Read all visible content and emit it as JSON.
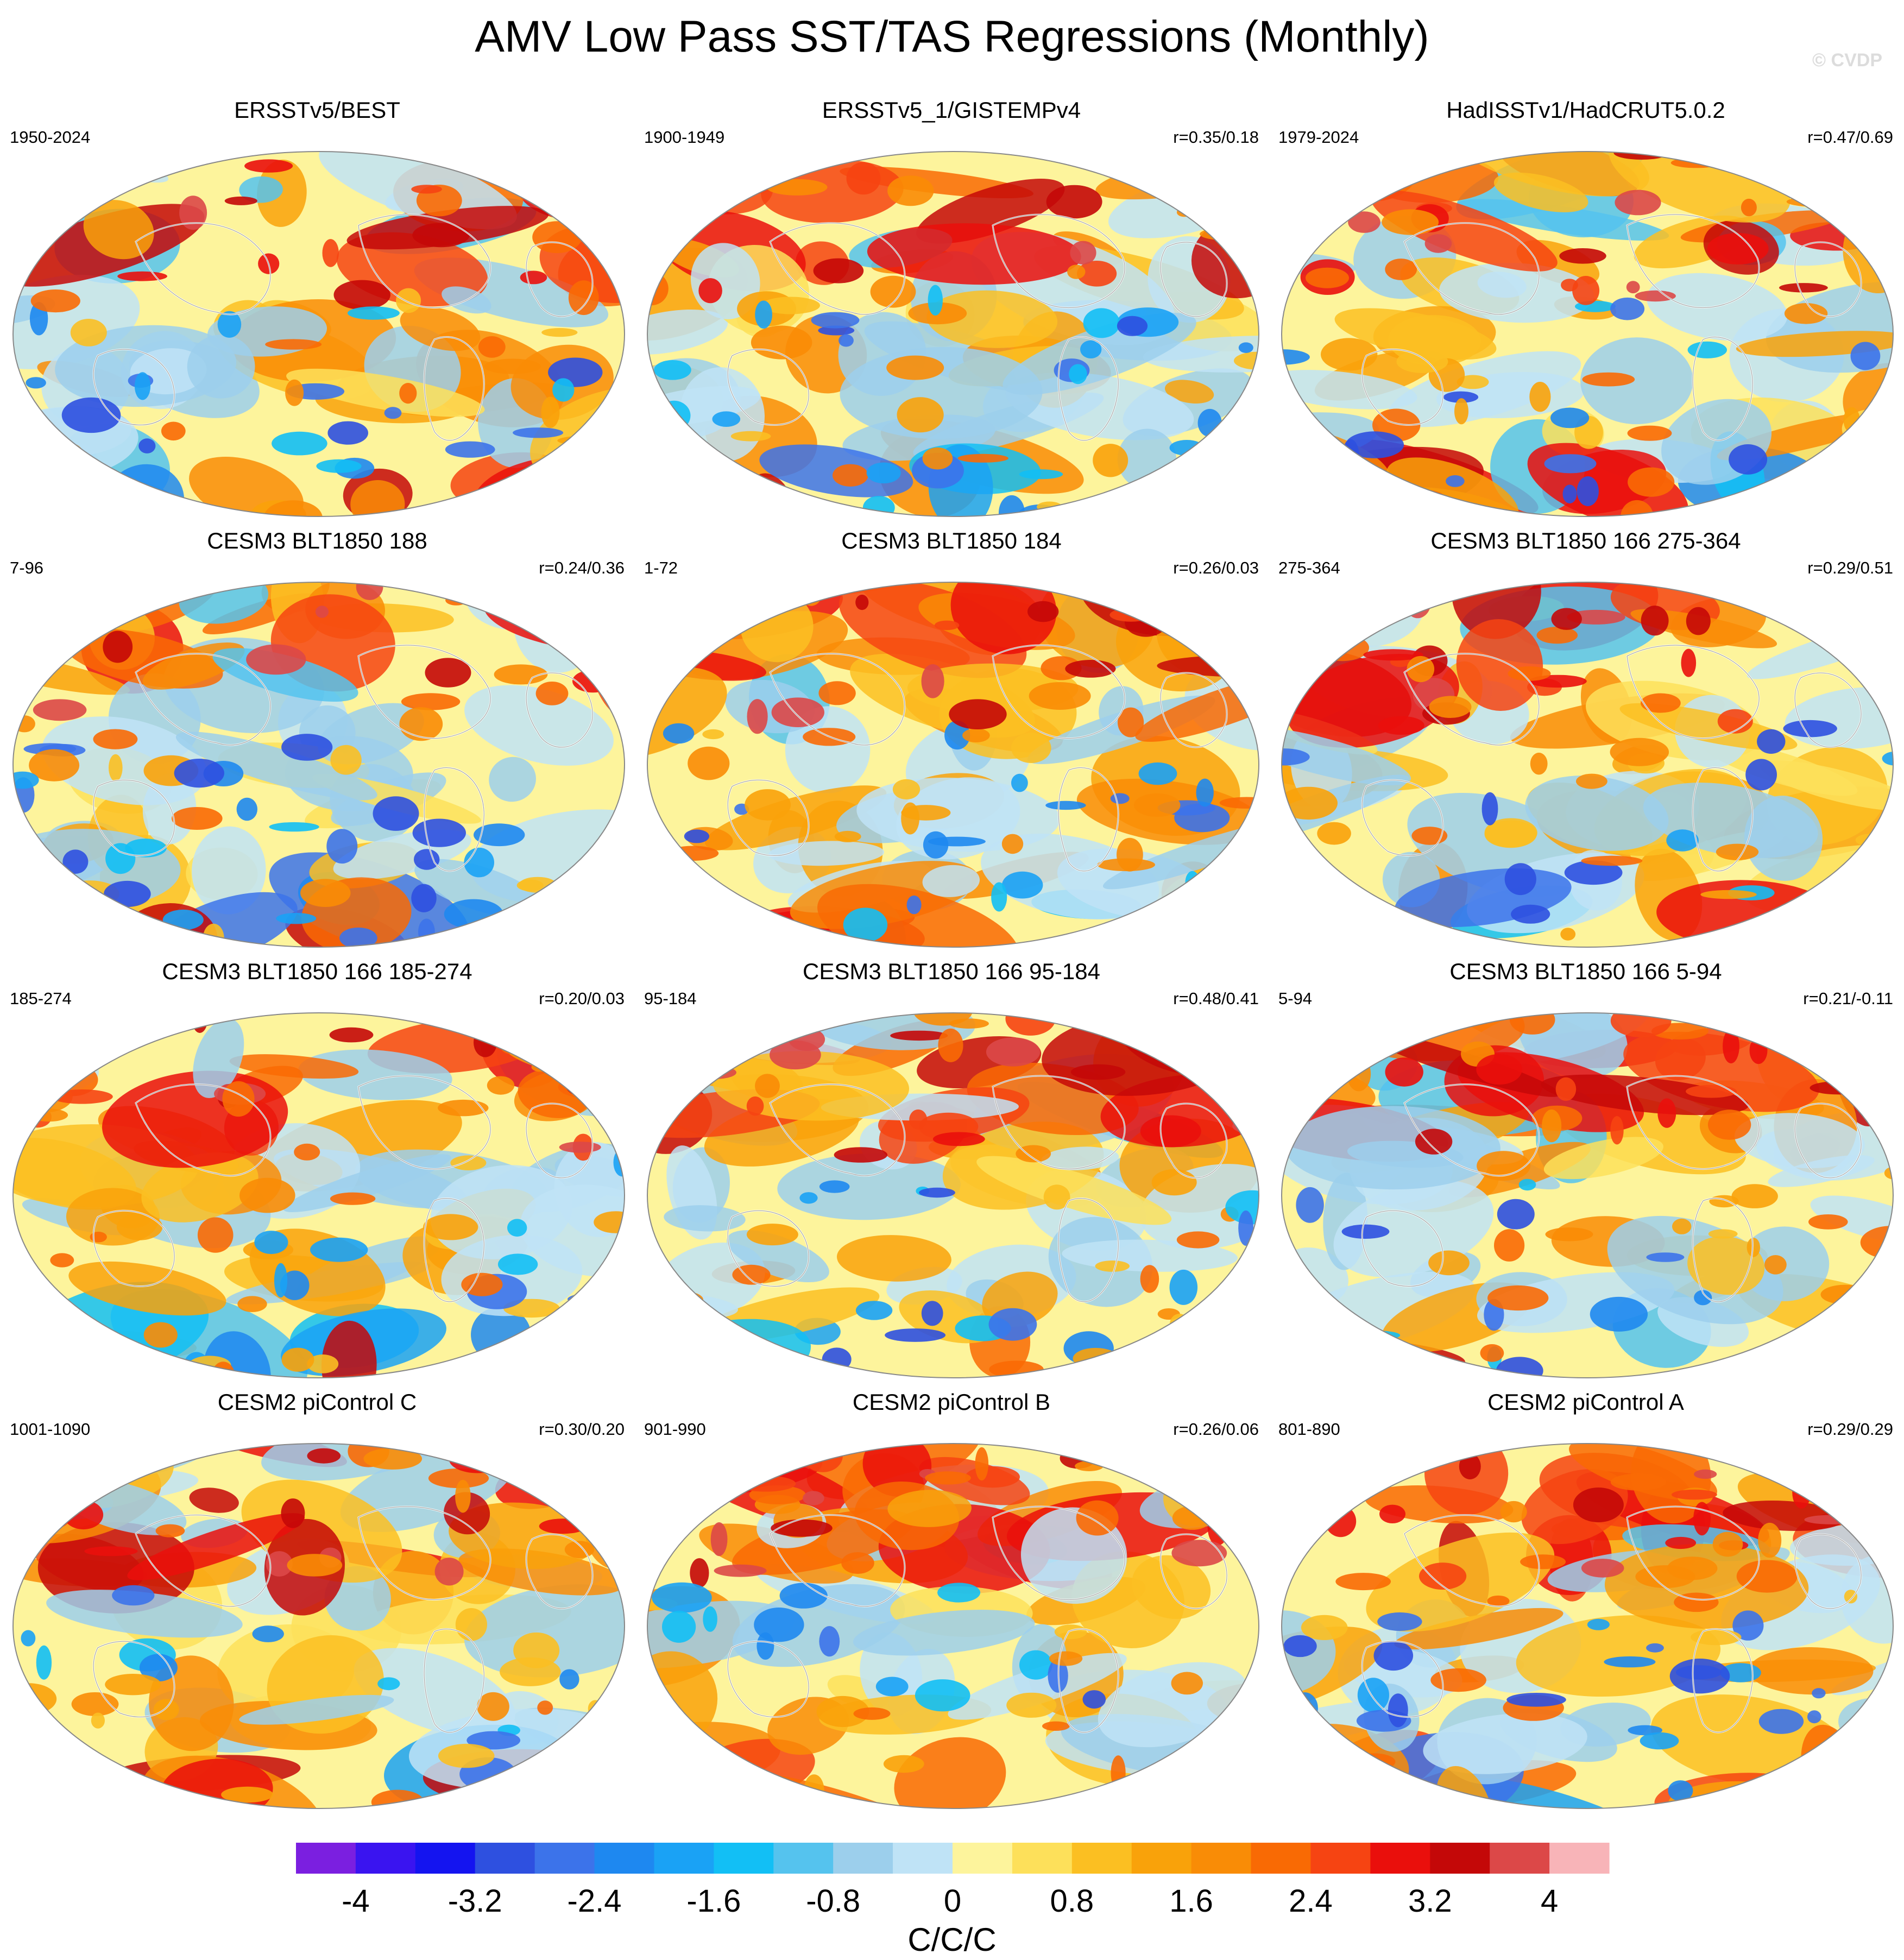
{
  "figure": {
    "title": "AMV Low Pass SST/TAS Regressions (Monthly)",
    "copyright": "© CVDP"
  },
  "chart_data": {
    "type": "heatmap",
    "projection": "global equal-area (Robinson-like), Pacific-centered",
    "panels": [
      {
        "title": "ERSSTv5/BEST",
        "period": "1950-2024",
        "r": ""
      },
      {
        "title": "ERSSTv5_1/GISTEMPv4",
        "period": "1900-1949",
        "r": "r=0.35/0.18"
      },
      {
        "title": "HadISSTv1/HadCRUT5.0.2",
        "period": "1979-2024",
        "r": "r=0.47/0.69"
      },
      {
        "title": "CESM3 BLT1850 188",
        "period": "7-96",
        "r": "r=0.24/0.36"
      },
      {
        "title": "CESM3 BLT1850 184",
        "period": "1-72",
        "r": "r=0.26/0.03"
      },
      {
        "title": "CESM3 BLT1850 166 275-364",
        "period": "275-364",
        "r": "r=0.29/0.51"
      },
      {
        "title": "CESM3 BLT1850 166 185-274",
        "period": "185-274",
        "r": "r=0.20/0.03"
      },
      {
        "title": "CESM3 BLT1850 166 95-184",
        "period": "95-184",
        "r": "r=0.48/0.41"
      },
      {
        "title": "CESM3 BLT1850 166 5-94",
        "period": "5-94",
        "r": "r=0.21/-0.11"
      },
      {
        "title": "CESM2 piControl C",
        "period": "1001-1090",
        "r": "r=0.30/0.20"
      },
      {
        "title": "CESM2 piControl B",
        "period": "901-990",
        "r": "r=0.26/0.06"
      },
      {
        "title": "CESM2 piControl A",
        "period": "801-890",
        "r": "r=0.29/0.29"
      }
    ],
    "colorbar": {
      "label": "C/C/C",
      "tick_labels": [
        "-4",
        "-3.2",
        "-2.4",
        "-1.6",
        "-0.8",
        "0",
        "0.8",
        "1.6",
        "2.4",
        "3.2",
        "4"
      ],
      "levels": [
        -4,
        -3.6,
        -3.2,
        -2.8,
        -2.4,
        -2,
        -1.6,
        -1.2,
        -0.8,
        -0.4,
        0,
        0.4,
        0.8,
        1.2,
        1.6,
        2,
        2.4,
        2.8,
        3.2,
        3.6,
        4
      ],
      "colors": [
        "#7b1fe0",
        "#3a14f0",
        "#1414f0",
        "#2e50e0",
        "#3c73ea",
        "#1e88f0",
        "#1aa2f5",
        "#12bff5",
        "#55c3ee",
        "#9ccfec",
        "#bfe3f6",
        "#fdf49c",
        "#fde05a",
        "#fbbf22",
        "#f9a20a",
        "#f98c06",
        "#f96a04",
        "#f64412",
        "#ea0f0c",
        "#c40808",
        "#dc4848",
        "#f8b4b8"
      ]
    }
  }
}
